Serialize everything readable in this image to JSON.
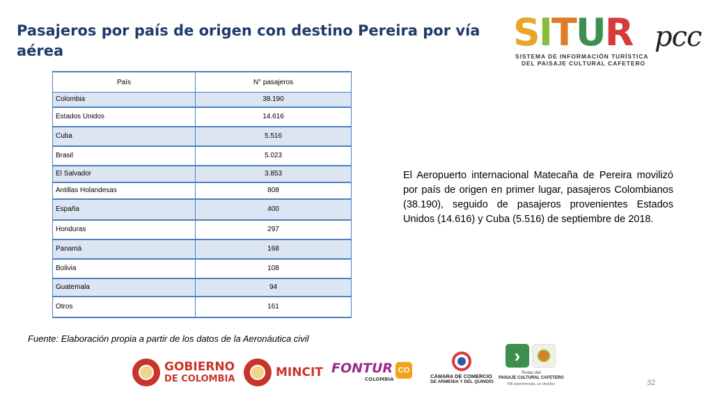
{
  "title": "Pasajeros por país de origen con destino Pereira por vía aérea",
  "logo_situr": {
    "letters": [
      {
        "ch": "S",
        "color": "#e8a72a"
      },
      {
        "ch": "I",
        "color": "#8bbd3c"
      },
      {
        "ch": "T",
        "color": "#e07b2a"
      },
      {
        "ch": "U",
        "color": "#3c8f4d"
      },
      {
        "ch": "R",
        "color": "#d63a3a"
      }
    ],
    "suffix": "pcc",
    "line1": "SISTEMA DE INFORMACIÓN TURÍSTICA",
    "line2": "DEL PAISAJE CULTURAL CAFETERO"
  },
  "table": {
    "headers": [
      "País",
      "N° pasajeros"
    ],
    "rows": [
      {
        "country": "Colombia",
        "passengers": "38.190"
      },
      {
        "country": "Estados Unidos",
        "passengers": "14.616"
      },
      {
        "country": "Cuba",
        "passengers": "5.516"
      },
      {
        "country": "Brasil",
        "passengers": "5.023"
      },
      {
        "country": "El Salvador",
        "passengers": "3.853"
      },
      {
        "country": "Antillas Holandesas",
        "passengers": "808"
      },
      {
        "country": "España",
        "passengers": "400"
      },
      {
        "country": "Honduras",
        "passengers": "297"
      },
      {
        "country": "Panamá",
        "passengers": "168"
      },
      {
        "country": "Bolivia",
        "passengers": "108"
      },
      {
        "country": "Guatemala",
        "passengers": "94"
      },
      {
        "country": "Otros",
        "passengers": "161"
      }
    ]
  },
  "paragraph": "El Aeropuerto internacional Matecaña de Pereira movilizó por país de origen en primer lugar, pasajeros Colombianos (38.190), seguido de pasajeros provenientes Estados Unidos (14.616) y Cuba (5.516) de septiembre de 2018.",
  "source": "Fuente: Elaboración propia a partir de los datos de la Aeronáutica civil",
  "footer_logos": {
    "gobierno_line1": "GOBIERNO",
    "gobierno_line2": "DE COLOMBIA",
    "mincit": "MINCIT",
    "fontur": "FONTUR",
    "fontur_sub": "COLOMBIA",
    "fontur_badge": "CO",
    "camara_line1": "CÁMARA DE COMERCIO",
    "camara_line2": "DE ARMENIA Y DEL QUINDÍO",
    "rutas_line1": "Rutas del",
    "rutas_line2": "PAISAJE CULTURAL CAFETERO",
    "rutas_line3": "Mil experiencias, un destino"
  },
  "page_number": "32"
}
